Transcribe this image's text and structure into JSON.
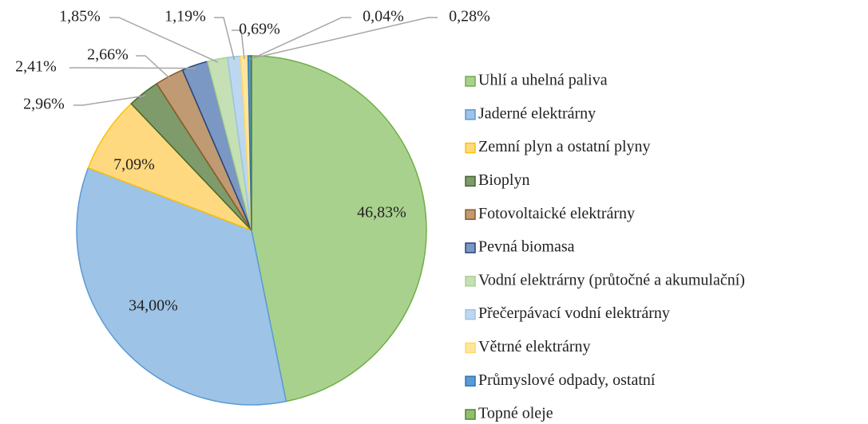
{
  "chart_data": {
    "type": "pie",
    "categories": [
      "Uhlí a uhelná paliva",
      "Jaderné elektrárny",
      "Zemní plyn a ostatní plyny",
      "Bioplyn",
      "Fotovoltaické elektrárny",
      "Pevná biomasa",
      "Vodní elektrárny (průtočné a akumulační)",
      "Přečerpávací vodní elektrárny",
      "Větrné elektrárny",
      "Průmyslové odpady, ostatní",
      "Topné oleje"
    ],
    "values": [
      46.83,
      34.0,
      7.09,
      2.96,
      2.66,
      2.41,
      1.85,
      1.19,
      0.69,
      0.28,
      0.04
    ],
    "value_labels": [
      "46,83%",
      "34,00%",
      "7,09%",
      "2,96%",
      "2,66%",
      "2,41%",
      "1,85%",
      "1,19%",
      "0,69%",
      "0,28%",
      "0,04%"
    ],
    "colors": [
      "#a9d18e",
      "#9dc3e6",
      "#ffd980",
      "#7f9a6b",
      "#c09a72",
      "#7b97c4",
      "#c5e0b4",
      "#bdd7ee",
      "#ffe699",
      "#5b9bd5",
      "#8fbf6f"
    ],
    "edge_colors": [
      "#70ad47",
      "#5b9bd5",
      "#ffc000",
      "#43682b",
      "#8a5a23",
      "#264478",
      "#a9d18e",
      "#9dc3e6",
      "#ffd966",
      "#2e75b6",
      "#548235"
    ],
    "legend": "right"
  }
}
